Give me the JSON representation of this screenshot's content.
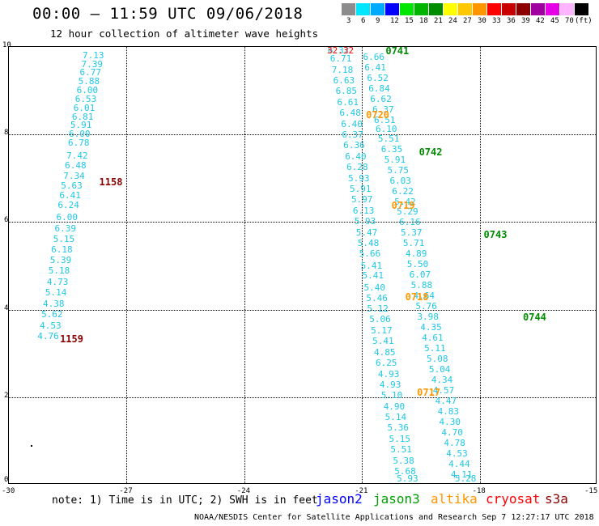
{
  "header": {
    "title": "00:00 – 11:59 UTC 09/06/2018",
    "subtitle": "12 hour collection of altimeter wave heights"
  },
  "scale": {
    "colors": [
      "#8c8c8c",
      "#00e6ff",
      "#00aaff",
      "#0000ff",
      "#00e600",
      "#00b400",
      "#008c00",
      "#ffff00",
      "#ffc800",
      "#ff9600",
      "#ff0000",
      "#c80000",
      "#8c0000",
      "#a000a0",
      "#e600e6",
      "#ffb4ff",
      "#000000"
    ],
    "labels": [
      "3",
      "6",
      "9",
      "12",
      "15",
      "18",
      "21",
      "24",
      "27",
      "30",
      "33",
      "36",
      "39",
      "42",
      "45",
      "70",
      "(ft)"
    ]
  },
  "chart_data": {
    "type": "scatter",
    "xlim": [
      -30,
      -15
    ],
    "ylim": [
      0,
      10
    ],
    "x_ticks": [
      "-30",
      "-27",
      "-24",
      "-21",
      "-18",
      "-15"
    ],
    "y_ticks": [
      "0",
      "2",
      "4",
      "6",
      "8",
      "10"
    ],
    "grid": true,
    "tracks": [
      {
        "color": "#1ec8e6",
        "points": [
          {
            "x": -27.85,
            "y": 9.8,
            "v": "7.13"
          },
          {
            "x": -27.88,
            "y": 9.6,
            "v": "7.39"
          },
          {
            "x": -27.92,
            "y": 9.4,
            "v": "6.77"
          },
          {
            "x": -27.96,
            "y": 9.2,
            "v": "5.88"
          },
          {
            "x": -28.0,
            "y": 9.0,
            "v": "6.00"
          },
          {
            "x": -28.04,
            "y": 8.8,
            "v": "6.53"
          },
          {
            "x": -28.08,
            "y": 8.6,
            "v": "6.01"
          },
          {
            "x": -28.12,
            "y": 8.4,
            "v": "6.81"
          },
          {
            "x": -28.16,
            "y": 8.2,
            "v": "5.91"
          },
          {
            "x": -28.2,
            "y": 8.0,
            "v": "6.00"
          },
          {
            "x": -28.22,
            "y": 7.8,
            "v": "6.78"
          },
          {
            "x": -28.26,
            "y": 7.5,
            "v": "7.42"
          },
          {
            "x": -28.3,
            "y": 7.28,
            "v": "6.48"
          },
          {
            "x": -28.34,
            "y": 7.05,
            "v": "7.34"
          },
          {
            "x": -28.4,
            "y": 6.82,
            "v": "5.63"
          },
          {
            "x": -28.44,
            "y": 6.6,
            "v": "6.41"
          },
          {
            "x": -28.48,
            "y": 6.38,
            "v": "6.24"
          },
          {
            "x": -28.52,
            "y": 6.1,
            "v": "6.00"
          },
          {
            "x": -28.56,
            "y": 5.85,
            "v": "6.39"
          },
          {
            "x": -28.6,
            "y": 5.6,
            "v": "5.15"
          },
          {
            "x": -28.65,
            "y": 5.36,
            "v": "6.18"
          },
          {
            "x": -28.68,
            "y": 5.12,
            "v": "5.39"
          },
          {
            "x": -28.72,
            "y": 4.88,
            "v": "5.18"
          },
          {
            "x": -28.76,
            "y": 4.62,
            "v": "4.73"
          },
          {
            "x": -28.8,
            "y": 4.38,
            "v": "5.14"
          },
          {
            "x": -28.86,
            "y": 4.12,
            "v": "4.38"
          },
          {
            "x": -28.9,
            "y": 3.88,
            "v": "5.62"
          },
          {
            "x": -28.94,
            "y": 3.62,
            "v": "4.53"
          },
          {
            "x": -29.0,
            "y": 3.38,
            "v": "4.76"
          }
        ]
      },
      {
        "color": "#1ec8e6",
        "points": [
          {
            "x": -21.6,
            "y": 9.95,
            "v": "6.32"
          },
          {
            "x": -21.54,
            "y": 9.72,
            "v": "6.71"
          },
          {
            "x": -21.5,
            "y": 9.47,
            "v": "7.18"
          },
          {
            "x": -21.46,
            "y": 9.22,
            "v": "6.63"
          },
          {
            "x": -21.4,
            "y": 8.98,
            "v": "6.85"
          },
          {
            "x": -21.36,
            "y": 8.73,
            "v": "6.61"
          },
          {
            "x": -21.3,
            "y": 8.48,
            "v": "6.48"
          },
          {
            "x": -21.26,
            "y": 8.23,
            "v": "6.40"
          },
          {
            "x": -21.24,
            "y": 7.98,
            "v": "6.37"
          },
          {
            "x": -21.2,
            "y": 7.74,
            "v": "6.36"
          },
          {
            "x": -21.16,
            "y": 7.48,
            "v": "6.40"
          },
          {
            "x": -21.12,
            "y": 7.24,
            "v": "6.28"
          },
          {
            "x": -21.08,
            "y": 6.99,
            "v": "5.93"
          },
          {
            "x": -21.04,
            "y": 6.74,
            "v": "5.91"
          },
          {
            "x": -21.0,
            "y": 6.5,
            "v": "5.97"
          },
          {
            "x": -20.96,
            "y": 6.24,
            "v": "6.13"
          },
          {
            "x": -20.92,
            "y": 6.0,
            "v": "5.93"
          },
          {
            "x": -20.88,
            "y": 5.75,
            "v": "5.47"
          },
          {
            "x": -20.84,
            "y": 5.5,
            "v": "5.48"
          },
          {
            "x": -20.8,
            "y": 5.26,
            "v": "5.66"
          },
          {
            "x": -20.76,
            "y": 5.0,
            "v": "5.41"
          },
          {
            "x": -20.72,
            "y": 4.76,
            "v": "5.41"
          },
          {
            "x": -20.68,
            "y": 4.5,
            "v": "5.40"
          },
          {
            "x": -20.62,
            "y": 4.26,
            "v": "5.46"
          },
          {
            "x": -20.6,
            "y": 4.02,
            "v": "5.12"
          },
          {
            "x": -20.54,
            "y": 3.77,
            "v": "5.06"
          },
          {
            "x": -20.5,
            "y": 3.52,
            "v": "5.17"
          },
          {
            "x": -20.46,
            "y": 3.28,
            "v": "5.41"
          },
          {
            "x": -20.42,
            "y": 3.02,
            "v": "4.85"
          },
          {
            "x": -20.38,
            "y": 2.78,
            "v": "6.25"
          },
          {
            "x": -20.32,
            "y": 2.52,
            "v": "4.93"
          },
          {
            "x": -20.28,
            "y": 2.28,
            "v": "4.93"
          },
          {
            "x": -20.24,
            "y": 2.03,
            "v": "5.10"
          },
          {
            "x": -20.18,
            "y": 1.78,
            "v": "4.90"
          },
          {
            "x": -20.14,
            "y": 1.54,
            "v": "5.14"
          },
          {
            "x": -20.08,
            "y": 1.29,
            "v": "5.36"
          },
          {
            "x": -20.04,
            "y": 1.04,
            "v": "5.15"
          },
          {
            "x": -20.0,
            "y": 0.79,
            "v": "5.51"
          },
          {
            "x": -19.94,
            "y": 0.54,
            "v": "5.38"
          },
          {
            "x": -19.9,
            "y": 0.3,
            "v": "5.68"
          },
          {
            "x": -19.84,
            "y": 0.06,
            "v": "5.93"
          }
        ]
      },
      {
        "color": "#1ec8e6",
        "points": [
          {
            "x": -20.7,
            "y": 9.76,
            "v": "6.66"
          },
          {
            "x": -20.66,
            "y": 9.52,
            "v": "6.41"
          },
          {
            "x": -20.6,
            "y": 9.28,
            "v": "6.52"
          },
          {
            "x": -20.56,
            "y": 9.04,
            "v": "6.84"
          },
          {
            "x": -20.52,
            "y": 8.8,
            "v": "6.62"
          },
          {
            "x": -20.46,
            "y": 8.56,
            "v": "6.37"
          },
          {
            "x": -20.42,
            "y": 8.32,
            "v": "6.51"
          },
          {
            "x": -20.38,
            "y": 8.12,
            "v": "6.10"
          },
          {
            "x": -20.32,
            "y": 7.9,
            "v": "5.51"
          },
          {
            "x": -20.24,
            "y": 7.66,
            "v": "6.35"
          },
          {
            "x": -20.16,
            "y": 7.42,
            "v": "5.91"
          },
          {
            "x": -20.08,
            "y": 7.18,
            "v": "5.75"
          },
          {
            "x": -20.02,
            "y": 6.94,
            "v": "6.03"
          },
          {
            "x": -19.96,
            "y": 6.7,
            "v": "6.22"
          },
          {
            "x": -19.9,
            "y": 6.46,
            "v": "5.42"
          },
          {
            "x": -19.84,
            "y": 6.22,
            "v": "5.29"
          },
          {
            "x": -19.78,
            "y": 5.98,
            "v": "6.16"
          },
          {
            "x": -19.74,
            "y": 5.74,
            "v": "5.37"
          },
          {
            "x": -19.68,
            "y": 5.5,
            "v": "5.71"
          },
          {
            "x": -19.62,
            "y": 5.26,
            "v": "4.89"
          },
          {
            "x": -19.58,
            "y": 5.02,
            "v": "5.50"
          },
          {
            "x": -19.52,
            "y": 4.78,
            "v": "6.07"
          },
          {
            "x": -19.48,
            "y": 4.54,
            "v": "5.88"
          },
          {
            "x": -19.42,
            "y": 4.3,
            "v": "4.64"
          },
          {
            "x": -19.36,
            "y": 4.06,
            "v": "5.76"
          },
          {
            "x": -19.32,
            "y": 3.82,
            "v": "3.98"
          },
          {
            "x": -19.24,
            "y": 3.58,
            "v": "4.35"
          },
          {
            "x": -19.2,
            "y": 3.34,
            "v": "4.61"
          },
          {
            "x": -19.14,
            "y": 3.1,
            "v": "5.11"
          },
          {
            "x": -19.08,
            "y": 2.86,
            "v": "5.08"
          },
          {
            "x": -19.02,
            "y": 2.62,
            "v": "5.04"
          },
          {
            "x": -18.96,
            "y": 2.38,
            "v": "4.34"
          },
          {
            "x": -18.92,
            "y": 2.14,
            "v": "4.57"
          },
          {
            "x": -18.86,
            "y": 1.9,
            "v": "4.47"
          },
          {
            "x": -18.8,
            "y": 1.66,
            "v": "4.83"
          },
          {
            "x": -18.76,
            "y": 1.42,
            "v": "4.30"
          },
          {
            "x": -18.7,
            "y": 1.18,
            "v": "4.70"
          },
          {
            "x": -18.64,
            "y": 0.94,
            "v": "4.78"
          },
          {
            "x": -18.58,
            "y": 0.7,
            "v": "4.53"
          },
          {
            "x": -18.52,
            "y": 0.46,
            "v": "4.44"
          },
          {
            "x": -18.46,
            "y": 0.22,
            "v": "4.11"
          },
          {
            "x": -18.36,
            "y": -0.04,
            "v": "5.28"
          }
        ]
      }
    ],
    "track_labels": [
      {
        "x": -27.4,
        "y": 6.92,
        "text": "1158",
        "color": "#8c0000"
      },
      {
        "x": -28.4,
        "y": 3.32,
        "text": "1159",
        "color": "#8c0000"
      },
      {
        "x": -20.1,
        "y": 9.98,
        "text": "0741",
        "color": "#008c00"
      },
      {
        "x": -19.25,
        "y": 7.6,
        "text": "0742",
        "color": "#008c00"
      },
      {
        "x": -17.6,
        "y": 5.72,
        "text": "0743",
        "color": "#008c00"
      },
      {
        "x": -16.6,
        "y": 3.82,
        "text": "0744",
        "color": "#008c00"
      },
      {
        "x": -20.6,
        "y": 8.45,
        "text": "0720",
        "color": "#ff9600"
      },
      {
        "x": -19.95,
        "y": 6.38,
        "text": "0719",
        "color": "#ff9600"
      },
      {
        "x": -19.6,
        "y": 4.28,
        "text": "0718",
        "color": "#ff9600"
      },
      {
        "x": -19.3,
        "y": 2.1,
        "text": "0717",
        "color": "#ff9600"
      },
      {
        "x": -21.55,
        "y": 9.98,
        "text": "32.32",
        "color": "#ff0000"
      }
    ]
  },
  "footer": {
    "note": "note:  1) Time is in UTC;  2) SWH is in feet",
    "satellites": [
      {
        "name": "jason2",
        "color": "#0000ff"
      },
      {
        "name": "jason3",
        "color": "#00a000"
      },
      {
        "name": "altika",
        "color": "#ff9600"
      },
      {
        "name": "cryosat",
        "color": "#ff0000"
      },
      {
        "name": "s3a",
        "color": "#8c0000"
      }
    ],
    "credit": "NOAA/NESDIS Center for Satellite Applications and Research    Sep  7 12:27:17 UTC 2018"
  }
}
